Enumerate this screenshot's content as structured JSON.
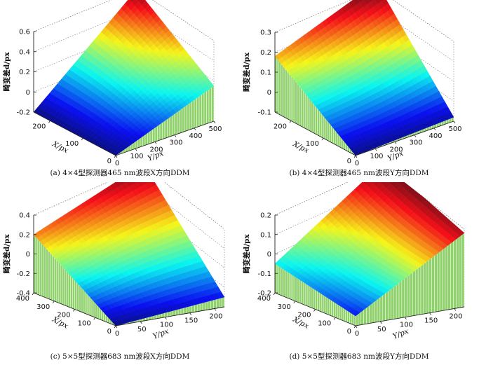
{
  "chart_data": [
    {
      "type": "surface",
      "caption": "(a) 4×4型探测器465 nm波段X方向DDM",
      "zlabel": "畸变差d/px",
      "xlabel": "X/px",
      "ylabel": "Y/px",
      "zlim": [
        -0.2,
        0.6
      ],
      "zticks": [
        "-0.2",
        "0",
        "0.2",
        "0.4",
        "0.6"
      ],
      "xlim": [
        0,
        250
      ],
      "xticks": [
        "0",
        "100",
        "200"
      ],
      "ylim": [
        0,
        500
      ],
      "yticks": [
        "0",
        "100",
        "200",
        "300",
        "400",
        "500"
      ],
      "corners": {
        "x0y0": -0.2,
        "x0ymax": 0.15,
        "xmaxy0": -0.2,
        "xmaxymax": 0.6
      },
      "mid_weight": 0.12,
      "vertical_skirts": [
        "x0"
      ]
    },
    {
      "type": "surface",
      "caption": "(b) 4×4型探测器465 nm波段Y方向DDM",
      "zlabel": "畸变差d/px",
      "xlabel": "X/px",
      "ylabel": "Y/px",
      "zlim": [
        -0.1,
        0.3
      ],
      "zticks": [
        "-0.1",
        "0",
        "0.1",
        "0.2",
        "0.3"
      ],
      "xlim": [
        0,
        250
      ],
      "xticks": [
        "0",
        "100",
        "200"
      ],
      "ylim": [
        0,
        500
      ],
      "yticks": [
        "0",
        "100",
        "200",
        "300",
        "400",
        "500"
      ],
      "corners": {
        "x0y0": -0.1,
        "x0ymax": -0.08,
        "xmaxy0": 0.18,
        "xmaxymax": 0.33
      },
      "mid_weight": -0.1,
      "vertical_skirts": [
        "x0",
        "y0"
      ]
    },
    {
      "type": "surface",
      "caption": "(c) 5×5型探测器683 nm波段X方向DDM",
      "zlabel": "畸变差d/px",
      "xlabel": "X/px",
      "ylabel": "Y/px",
      "zlim": [
        -0.4,
        0.4
      ],
      "zticks": [
        "-0.4",
        "-0.2",
        "0",
        "0.2",
        "0.4"
      ],
      "xlim": [
        0,
        400
      ],
      "xticks": [
        "0",
        "100",
        "200",
        "300",
        "400"
      ],
      "ylim": [
        0,
        220
      ],
      "yticks": [
        "0",
        "50",
        "100",
        "150",
        "200"
      ],
      "corners": {
        "x0y0": -0.4,
        "x0ymax": -0.3,
        "xmaxy0": 0.2,
        "xmaxymax": 0.42
      },
      "mid_weight": 0.1,
      "vertical_skirts": [
        "x0",
        "y0"
      ]
    },
    {
      "type": "surface",
      "caption": "(d) 5×5型探测器683 nm波段Y方向DDM",
      "zlabel": "畸变差d/px",
      "xlabel": "X/px",
      "ylabel": "Y/px",
      "zlim": [
        -0.2,
        0.2
      ],
      "zticks": [
        "-0.2",
        "-0.1",
        "0",
        "0.1",
        "0.2"
      ],
      "xlim": [
        0,
        400
      ],
      "xticks": [
        "0",
        "100",
        "200",
        "300",
        "400"
      ],
      "ylim": [
        0,
        220
      ],
      "yticks": [
        "0",
        "50",
        "100",
        "150",
        "200"
      ],
      "corners": {
        "x0y0": -0.15,
        "x0ymax": 0.18,
        "xmaxy0": -0.05,
        "xmaxymax": 0.22
      },
      "mid_weight": -0.2,
      "vertical_skirts": [
        "x0",
        "y0"
      ]
    }
  ],
  "colors": {
    "jet_low": "#1f3d9e",
    "jet_high": "#b2182b",
    "skirt": "#8fd16a",
    "axis": "#222222",
    "grid": "#7a7a7a"
  }
}
